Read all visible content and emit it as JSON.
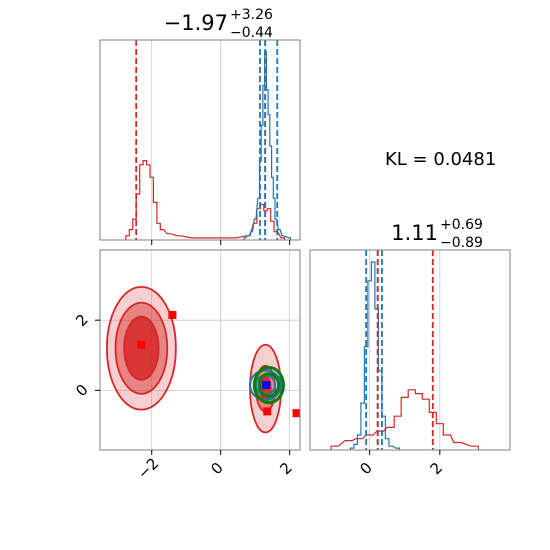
{
  "chart_data": [
    {
      "type": "histogram",
      "panel": "marginal-param-1",
      "title": {
        "median": "−1.97",
        "upper": "+3.26",
        "lower": "−0.44"
      },
      "xlim": [
        -3.5,
        2.3
      ],
      "grid": true,
      "vlines": [
        {
          "series": "red",
          "x": [
            -2.45,
            1.29
          ]
        },
        {
          "series": "blue",
          "x": [
            1.14,
            1.29,
            1.64
          ]
        }
      ],
      "series": [
        {
          "color": "#d62728",
          "x": [
            -2.7,
            -2.6,
            -2.5,
            -2.4,
            -2.3,
            -2.2,
            -2.1,
            -2.0,
            -1.9,
            -1.8,
            -1.7,
            -1.5,
            -1.2,
            -0.8,
            -0.2,
            0.4,
            0.8,
            1.0,
            1.1,
            1.2,
            1.3,
            1.4,
            1.5,
            1.6,
            1.8
          ],
          "values": [
            0.02,
            0.05,
            0.1,
            0.22,
            0.36,
            0.38,
            0.36,
            0.3,
            0.18,
            0.08,
            0.05,
            0.03,
            0.02,
            0.01,
            0.01,
            0.01,
            0.02,
            0.08,
            0.15,
            0.17,
            0.14,
            0.15,
            0.09,
            0.04,
            0.01
          ]
        },
        {
          "color": "#1f77b4",
          "x": [
            0.7,
            0.8,
            0.9,
            1.0,
            1.1,
            1.15,
            1.2,
            1.25,
            1.3,
            1.35,
            1.4,
            1.45,
            1.5,
            1.55,
            1.6,
            1.7,
            1.8,
            2.0
          ],
          "values": [
            0.01,
            0.02,
            0.04,
            0.1,
            0.2,
            0.38,
            0.55,
            0.74,
            0.9,
            0.72,
            0.6,
            0.45,
            0.3,
            0.2,
            0.1,
            0.05,
            0.02,
            0.01
          ]
        }
      ]
    },
    {
      "type": "histogram",
      "panel": "marginal-param-2",
      "title": {
        "median": "1.11",
        "upper": "+0.69",
        "lower": "−0.89"
      },
      "xlim": [
        -1.7,
        4.0
      ],
      "xticks": [
        0,
        2
      ],
      "xtick_labels": [
        "0",
        "2"
      ],
      "grid": true,
      "vlines": [
        {
          "series": "blue",
          "x": [
            -0.1,
            0.23,
            0.35
          ]
        },
        {
          "series": "red",
          "x": [
            0.23,
            1.8
          ]
        }
      ],
      "series": [
        {
          "color": "#1f77b4",
          "x": [
            -0.5,
            -0.4,
            -0.3,
            -0.2,
            -0.1,
            0.0,
            0.1,
            0.2,
            0.3,
            0.4,
            0.5,
            0.6,
            0.8
          ],
          "values": [
            0.01,
            0.03,
            0.08,
            0.25,
            0.55,
            0.9,
            1.0,
            0.75,
            0.42,
            0.18,
            0.06,
            0.02,
            0.01
          ]
        },
        {
          "color": "#d62728",
          "x": [
            -1.0,
            -0.6,
            -0.3,
            0.0,
            0.3,
            0.6,
            0.8,
            1.0,
            1.2,
            1.4,
            1.6,
            1.8,
            2.0,
            2.2,
            2.5,
            3.0
          ],
          "values": [
            0.02,
            0.05,
            0.06,
            0.08,
            0.1,
            0.12,
            0.18,
            0.28,
            0.32,
            0.3,
            0.27,
            0.2,
            0.14,
            0.08,
            0.04,
            0.02
          ]
        }
      ]
    },
    {
      "type": "contour",
      "panel": "joint-2d",
      "xlim": [
        -3.5,
        2.3
      ],
      "ylim": [
        -1.7,
        4.0
      ],
      "xticks": [
        -2,
        0,
        2
      ],
      "xtick_labels": [
        "−2",
        "0",
        "2"
      ],
      "yticks": [
        0,
        2
      ],
      "ytick_labels": [
        "0",
        "2"
      ],
      "grid": true,
      "series": [
        {
          "name": "red",
          "color": "#d62728",
          "regions": [
            {
              "center": [
                -2.3,
                1.2
              ],
              "levels": [
                {
                  "rx": 0.5,
                  "ry": 0.9
                },
                {
                  "rx": 0.75,
                  "ry": 1.3
                },
                {
                  "rx": 1.0,
                  "ry": 1.75
                }
              ]
            },
            {
              "center": [
                1.3,
                0.05
              ],
              "levels": [
                {
                  "rx": 0.15,
                  "ry": 0.35
                },
                {
                  "rx": 0.28,
                  "ry": 0.65
                },
                {
                  "rx": 0.45,
                  "ry": 1.25
                }
              ]
            }
          ],
          "markers": [
            [
              -2.3,
              1.3
            ],
            [
              -1.4,
              2.15
            ],
            [
              1.35,
              -0.6
            ],
            [
              2.2,
              -0.65
            ]
          ]
        },
        {
          "name": "blue",
          "color": "#1f77b4",
          "regions": [
            {
              "center": [
                1.3,
                0.15
              ],
              "levels": [
                {
                  "rx": 0.28,
                  "ry": 0.28
                },
                {
                  "rx": 0.45,
                  "ry": 0.42
                }
              ]
            }
          ],
          "markers": [
            [
              1.32,
              0.15
            ]
          ]
        },
        {
          "name": "green",
          "color": "#008000",
          "regions": [
            {
              "center": [
                1.4,
                0.15
              ],
              "levels": [
                {
                  "rx": 0.28,
                  "ry": 0.32
                },
                {
                  "rx": 0.42,
                  "ry": 0.5
                }
              ]
            }
          ]
        }
      ]
    }
  ],
  "kl_label": "KL = 0.0481"
}
